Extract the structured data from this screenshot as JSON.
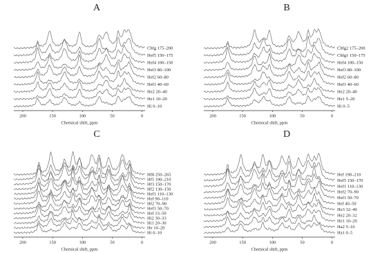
{
  "chart_data": [
    {
      "type": "spectra",
      "title": "A",
      "xlabel": "Chemical shift, ppm",
      "xlim": [
        215,
        -5
      ],
      "xticks": [
        200,
        150,
        100,
        50,
        0
      ],
      "peaks": [
        175,
        155,
        130,
        105,
        72,
        60,
        40,
        30,
        22
      ],
      "series": [
        {
          "name": "Chfg 175–200"
        },
        {
          "name": "Hef5 150–175"
        },
        {
          "name": "Hef4 100–150"
        },
        {
          "name": "Hef3 80–100"
        },
        {
          "name": "Hef2 60–80"
        },
        {
          "name": "Hef1 40–60"
        },
        {
          "name": "He2 20–40"
        },
        {
          "name": "He1 10–20"
        },
        {
          "name": "Hi 0–10"
        }
      ]
    },
    {
      "type": "spectra",
      "title": "B",
      "xlabel": "Chemical shift, ppm",
      "xlim": [
        215,
        -5
      ],
      "xticks": [
        200,
        150,
        100,
        50,
        0
      ],
      "peaks": [
        175,
        130,
        115,
        105,
        72,
        56,
        40,
        30,
        22
      ],
      "series": [
        {
          "name": "Chfg2 175–200"
        },
        {
          "name": "Chfg1 150–175"
        },
        {
          "name": "Hef4 100–150"
        },
        {
          "name": "Hef3 80–100"
        },
        {
          "name": "Hef2 60–80"
        },
        {
          "name": "Hef1 40–60"
        },
        {
          "name": "He2 20–40"
        },
        {
          "name": "He1 5–20"
        },
        {
          "name": "Hi 0–5"
        }
      ]
    },
    {
      "type": "spectra",
      "title": "C",
      "xlabel": "Chemical shift, ppm",
      "xlim": [
        215,
        -5
      ],
      "xticks": [
        200,
        150,
        100,
        50,
        0
      ],
      "peaks": [
        173,
        153,
        130,
        116,
        105,
        84,
        72,
        56,
        33,
        21
      ],
      "series": [
        {
          "name": "Hf8 250–265"
        },
        {
          "name": "Hf5 190–210"
        },
        {
          "name": "Hf3 150–170"
        },
        {
          "name": "Hf2 130–150"
        },
        {
          "name": "Hef1 110–130"
        },
        {
          "name": "Hef 90–110"
        },
        {
          "name": "Hf2 70–90"
        },
        {
          "name": "Hef1 50–70"
        },
        {
          "name": "Hef 33–50"
        },
        {
          "name": "Hi2 30–33"
        },
        {
          "name": "Hi1 20–30"
        },
        {
          "name": "He 10–20"
        },
        {
          "name": "Hi 0–10"
        }
      ]
    },
    {
      "type": "spectra",
      "title": "D",
      "xlabel": "Chemical shift, ppm",
      "xlim": [
        215,
        -5
      ],
      "xticks": [
        200,
        150,
        100,
        50,
        0
      ],
      "peaks": [
        175,
        153,
        130,
        116,
        105,
        84,
        72,
        56,
        40,
        30,
        22
      ],
      "series": [
        {
          "name": "Hef 190–210"
        },
        {
          "name": "Hef5 150–170"
        },
        {
          "name": "Hef1 110–130"
        },
        {
          "name": "Hef2 70–90"
        },
        {
          "name": "Hef1 50–70"
        },
        {
          "name": "Hef 40–50"
        },
        {
          "name": "He3 32–40"
        },
        {
          "name": "He2 20–32"
        },
        {
          "name": "He1 10–20"
        },
        {
          "name": "Ha2 5–10"
        },
        {
          "name": "Ha1 0–5"
        }
      ]
    }
  ]
}
